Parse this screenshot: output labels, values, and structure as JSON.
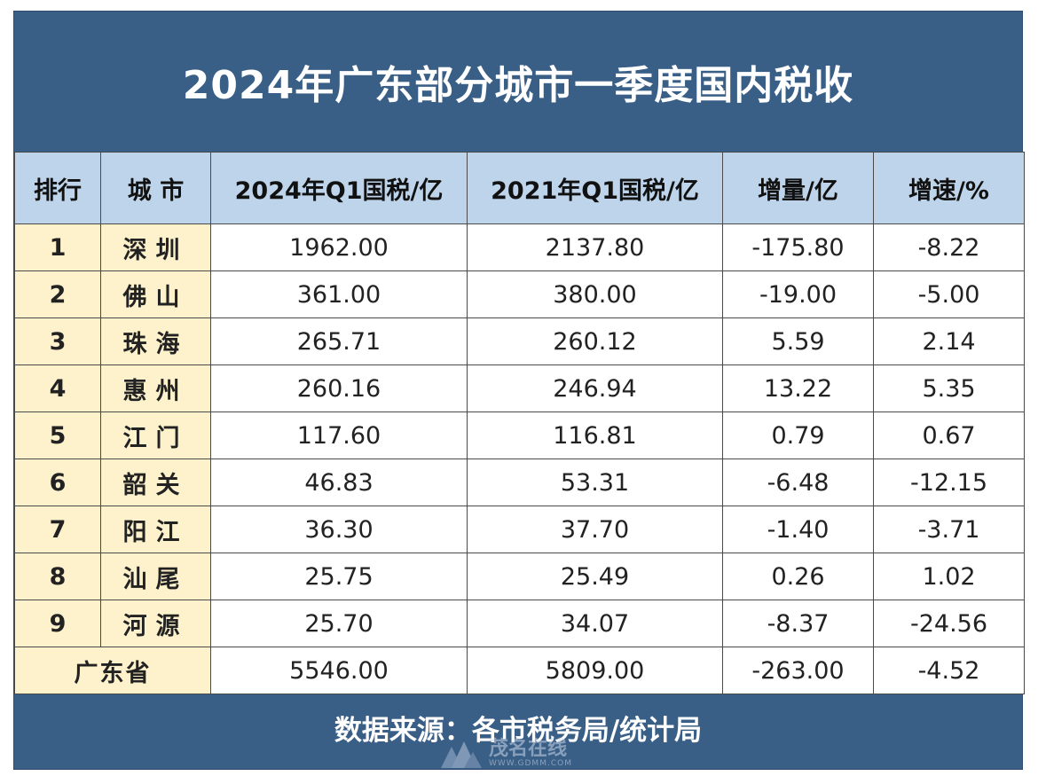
{
  "title": "2024年广东部分城市一季度国内税收",
  "headers": [
    "排行",
    "城 市",
    "2024年Q1国税/亿",
    "2021年Q1国税/亿",
    "增量/亿",
    "增速/%"
  ],
  "rows": [
    {
      "rank": "1",
      "city": "深圳",
      "q1_2024": "1962.00",
      "q1_2021": "2137.80",
      "change": "-175.80",
      "growth": "-8.22"
    },
    {
      "rank": "2",
      "city": "佛山",
      "q1_2024": "361.00",
      "q1_2021": "380.00",
      "change": "-19.00",
      "growth": "-5.00"
    },
    {
      "rank": "3",
      "city": "珠海",
      "q1_2024": "265.71",
      "q1_2021": "260.12",
      "change": "5.59",
      "growth": "2.14"
    },
    {
      "rank": "4",
      "city": "惠州",
      "q1_2024": "260.16",
      "q1_2021": "246.94",
      "change": "13.22",
      "growth": "5.35"
    },
    {
      "rank": "5",
      "city": "江门",
      "q1_2024": "117.60",
      "q1_2021": "116.81",
      "change": "0.79",
      "growth": "0.67"
    },
    {
      "rank": "6",
      "city": "韶关",
      "q1_2024": "46.83",
      "q1_2021": "53.31",
      "change": "-6.48",
      "growth": "-12.15"
    },
    {
      "rank": "7",
      "city": "阳江",
      "q1_2024": "36.30",
      "q1_2021": "37.70",
      "change": "-1.40",
      "growth": "-3.71"
    },
    {
      "rank": "8",
      "city": "汕尾",
      "q1_2024": "25.75",
      "q1_2021": "25.49",
      "change": "0.26",
      "growth": "1.02"
    },
    {
      "rank": "9",
      "city": "河源",
      "q1_2024": "25.70",
      "q1_2021": "34.07",
      "change": "-8.37",
      "growth": "-24.56"
    }
  ],
  "total": {
    "label": "广东省",
    "q1_2024": "5546.00",
    "q1_2021": "5809.00",
    "change": "-263.00",
    "growth": "-4.52"
  },
  "footer": "数据来源：各市税务局/统计局",
  "watermark": {
    "name": "茂名在线",
    "url": "WWW.GDMM.COM"
  },
  "colors": {
    "header_band": "#3a5f87",
    "column_header": "#bed4ea",
    "label_cells": "#fdf2cc",
    "negative": "#c0352b"
  }
}
